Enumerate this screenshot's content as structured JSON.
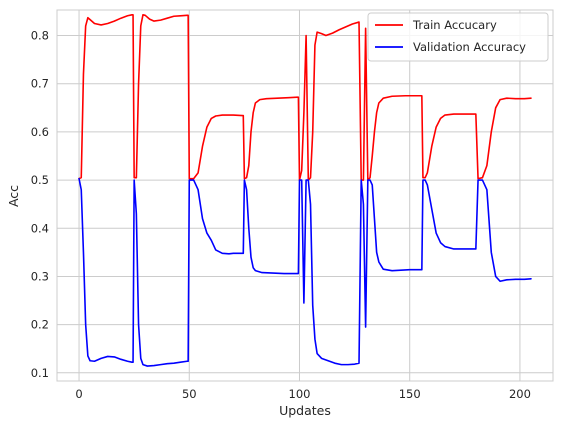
{
  "chart_data": {
    "type": "line",
    "title": "",
    "xlabel": "Updates",
    "ylabel": "Acc",
    "xlim": [
      -10,
      215
    ],
    "ylim": [
      0.083,
      0.853
    ],
    "xticks": [
      0,
      50,
      100,
      150,
      200
    ],
    "yticks": [
      0.1,
      0.2,
      0.3,
      0.4,
      0.5,
      0.6,
      0.7,
      0.8
    ],
    "grid": true,
    "legend": "top-right",
    "series": [
      {
        "name": "Train Accucary",
        "color": "#ff0000",
        "points": [
          [
            0,
            0.503
          ],
          [
            1,
            0.505
          ],
          [
            2,
            0.72
          ],
          [
            3,
            0.82
          ],
          [
            4,
            0.837
          ],
          [
            5,
            0.833
          ],
          [
            7,
            0.825
          ],
          [
            10,
            0.822
          ],
          [
            13,
            0.825
          ],
          [
            16,
            0.83
          ],
          [
            19,
            0.836
          ],
          [
            22,
            0.841
          ],
          [
            24,
            0.843
          ],
          [
            24.5,
            0.843
          ],
          [
            25,
            0.505
          ],
          [
            26,
            0.505
          ],
          [
            27,
            0.7
          ],
          [
            28,
            0.82
          ],
          [
            29,
            0.843
          ],
          [
            30,
            0.842
          ],
          [
            32,
            0.834
          ],
          [
            34,
            0.83
          ],
          [
            37,
            0.832
          ],
          [
            40,
            0.836
          ],
          [
            43,
            0.84
          ],
          [
            46,
            0.841
          ],
          [
            49,
            0.842
          ],
          [
            49.5,
            0.842
          ],
          [
            50,
            0.503
          ],
          [
            52,
            0.503
          ],
          [
            54,
            0.515
          ],
          [
            56,
            0.57
          ],
          [
            58,
            0.61
          ],
          [
            60,
            0.628
          ],
          [
            62,
            0.633
          ],
          [
            65,
            0.635
          ],
          [
            70,
            0.635
          ],
          [
            74,
            0.634
          ],
          [
            74.5,
            0.634
          ],
          [
            75,
            0.503
          ],
          [
            76,
            0.505
          ],
          [
            77,
            0.53
          ],
          [
            78,
            0.6
          ],
          [
            79,
            0.64
          ],
          [
            80,
            0.66
          ],
          [
            82,
            0.667
          ],
          [
            85,
            0.669
          ],
          [
            90,
            0.67
          ],
          [
            95,
            0.671
          ],
          [
            99,
            0.672
          ],
          [
            99.5,
            0.672
          ],
          [
            100,
            0.5
          ],
          [
            101,
            0.52
          ],
          [
            102,
            0.64
          ],
          [
            103,
            0.8
          ],
          [
            104,
            0.5
          ],
          [
            105,
            0.505
          ],
          [
            106,
            0.6
          ],
          [
            107,
            0.78
          ],
          [
            108,
            0.807
          ],
          [
            110,
            0.804
          ],
          [
            112,
            0.8
          ],
          [
            115,
            0.805
          ],
          [
            118,
            0.812
          ],
          [
            121,
            0.818
          ],
          [
            124,
            0.824
          ],
          [
            127,
            0.828
          ],
          [
            128,
            0.5
          ],
          [
            129,
            0.5
          ],
          [
            130,
            0.815
          ],
          [
            131,
            0.5
          ],
          [
            132,
            0.505
          ],
          [
            133,
            0.55
          ],
          [
            134,
            0.6
          ],
          [
            135,
            0.64
          ],
          [
            136,
            0.66
          ],
          [
            138,
            0.67
          ],
          [
            142,
            0.674
          ],
          [
            148,
            0.675
          ],
          [
            155,
            0.675
          ],
          [
            155.5,
            0.675
          ],
          [
            156,
            0.505
          ],
          [
            157,
            0.505
          ],
          [
            158,
            0.515
          ],
          [
            160,
            0.57
          ],
          [
            162,
            0.61
          ],
          [
            164,
            0.628
          ],
          [
            166,
            0.635
          ],
          [
            170,
            0.637
          ],
          [
            176,
            0.637
          ],
          [
            180,
            0.637
          ],
          [
            181,
            0.503
          ],
          [
            183,
            0.505
          ],
          [
            185,
            0.53
          ],
          [
            187,
            0.6
          ],
          [
            189,
            0.65
          ],
          [
            191,
            0.667
          ],
          [
            194,
            0.67
          ],
          [
            198,
            0.669
          ],
          [
            202,
            0.669
          ],
          [
            205,
            0.67
          ]
        ]
      },
      {
        "name": "Validation Accuracy",
        "color": "#0000ff",
        "points": [
          [
            0,
            0.503
          ],
          [
            1,
            0.48
          ],
          [
            2,
            0.35
          ],
          [
            3,
            0.2
          ],
          [
            4,
            0.135
          ],
          [
            5,
            0.125
          ],
          [
            7,
            0.124
          ],
          [
            10,
            0.13
          ],
          [
            13,
            0.134
          ],
          [
            16,
            0.133
          ],
          [
            19,
            0.128
          ],
          [
            22,
            0.124
          ],
          [
            24,
            0.122
          ],
          [
            24.5,
            0.122
          ],
          [
            25,
            0.5
          ],
          [
            26,
            0.43
          ],
          [
            27,
            0.2
          ],
          [
            28,
            0.13
          ],
          [
            29,
            0.117
          ],
          [
            31,
            0.114
          ],
          [
            34,
            0.115
          ],
          [
            37,
            0.117
          ],
          [
            40,
            0.119
          ],
          [
            43,
            0.12
          ],
          [
            46,
            0.122
          ],
          [
            49,
            0.124
          ],
          [
            49.5,
            0.124
          ],
          [
            50,
            0.5
          ],
          [
            52,
            0.5
          ],
          [
            54,
            0.48
          ],
          [
            56,
            0.42
          ],
          [
            58,
            0.39
          ],
          [
            60,
            0.375
          ],
          [
            62,
            0.355
          ],
          [
            65,
            0.348
          ],
          [
            68,
            0.347
          ],
          [
            70,
            0.348
          ],
          [
            74,
            0.348
          ],
          [
            74.5,
            0.348
          ],
          [
            75,
            0.5
          ],
          [
            76,
            0.48
          ],
          [
            77,
            0.4
          ],
          [
            78,
            0.34
          ],
          [
            79,
            0.318
          ],
          [
            80,
            0.312
          ],
          [
            83,
            0.308
          ],
          [
            88,
            0.307
          ],
          [
            93,
            0.306
          ],
          [
            99,
            0.306
          ],
          [
            99.5,
            0.306
          ],
          [
            100,
            0.5
          ],
          [
            101,
            0.5
          ],
          [
            102,
            0.245
          ],
          [
            103,
            0.5
          ],
          [
            104,
            0.5
          ],
          [
            105,
            0.45
          ],
          [
            106,
            0.24
          ],
          [
            107,
            0.17
          ],
          [
            108,
            0.14
          ],
          [
            110,
            0.13
          ],
          [
            113,
            0.125
          ],
          [
            116,
            0.12
          ],
          [
            119,
            0.117
          ],
          [
            122,
            0.117
          ],
          [
            125,
            0.118
          ],
          [
            127,
            0.12
          ],
          [
            128,
            0.5
          ],
          [
            129,
            0.45
          ],
          [
            130,
            0.195
          ],
          [
            131,
            0.5
          ],
          [
            132,
            0.5
          ],
          [
            133,
            0.49
          ],
          [
            134,
            0.42
          ],
          [
            135,
            0.35
          ],
          [
            136,
            0.33
          ],
          [
            138,
            0.315
          ],
          [
            142,
            0.312
          ],
          [
            146,
            0.313
          ],
          [
            150,
            0.314
          ],
          [
            155,
            0.314
          ],
          [
            155.5,
            0.314
          ],
          [
            156,
            0.5
          ],
          [
            157,
            0.5
          ],
          [
            158,
            0.49
          ],
          [
            160,
            0.44
          ],
          [
            162,
            0.39
          ],
          [
            164,
            0.37
          ],
          [
            166,
            0.362
          ],
          [
            170,
            0.357
          ],
          [
            176,
            0.357
          ],
          [
            180,
            0.357
          ],
          [
            181,
            0.5
          ],
          [
            183,
            0.5
          ],
          [
            185,
            0.48
          ],
          [
            187,
            0.35
          ],
          [
            189,
            0.3
          ],
          [
            191,
            0.29
          ],
          [
            194,
            0.293
          ],
          [
            198,
            0.294
          ],
          [
            202,
            0.294
          ],
          [
            205,
            0.295
          ]
        ]
      }
    ]
  }
}
